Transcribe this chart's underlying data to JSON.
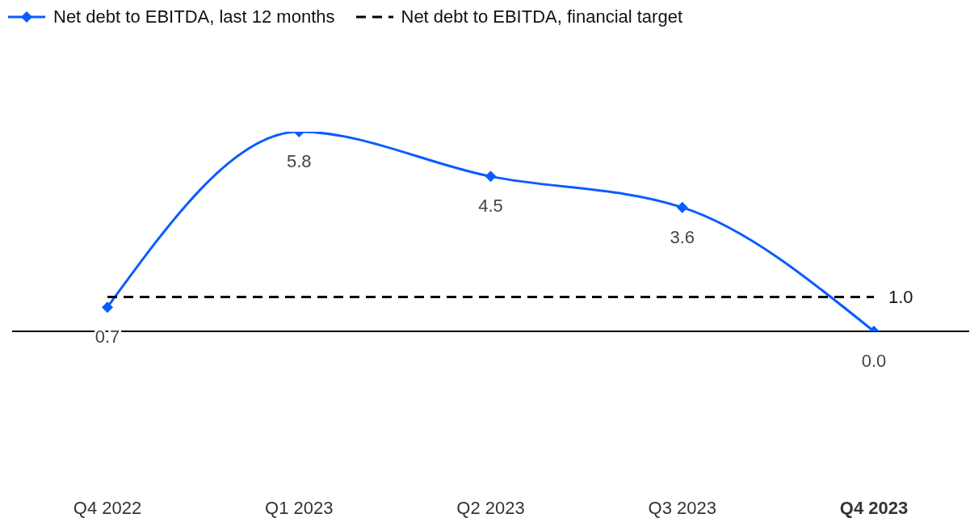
{
  "chart_data": {
    "type": "line",
    "categories": [
      "Q4 2022",
      "Q1 2023",
      "Q2 2023",
      "Q3 2023",
      "Q4 2023"
    ],
    "series": [
      {
        "name": "Net debt to EBITDA, last 12 months",
        "color": "#0a5cff",
        "values": [
          0.7,
          5.8,
          4.5,
          3.6,
          0.0
        ],
        "marker": "diamond",
        "line_style": "solid",
        "value_labels": [
          "0.7",
          "5.8",
          "4.5",
          "3.6",
          "0.0"
        ]
      },
      {
        "name": "Net debt to EBITDA, financial target",
        "color": "#000000",
        "values": [
          1.0,
          1.0,
          1.0,
          1.0,
          1.0
        ],
        "marker": "none",
        "line_style": "dashed",
        "value_labels": [
          null,
          null,
          null,
          null,
          "1.0"
        ]
      }
    ],
    "data_labels": true,
    "tick_labels": "x",
    "grid": false,
    "legend": "top left",
    "ref_lines": [
      {
        "axis": "y",
        "value": 0,
        "color": "#000000"
      }
    ]
  }
}
